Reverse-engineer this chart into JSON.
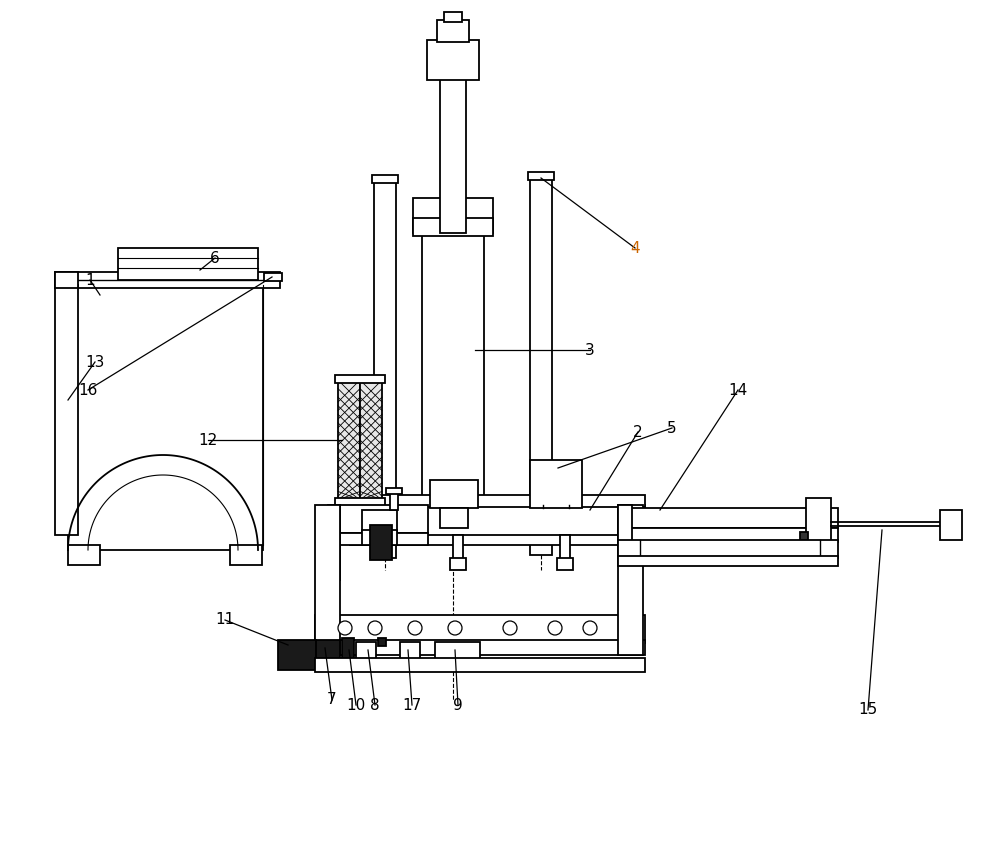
{
  "bg_color": "#ffffff",
  "lc": "#000000",
  "lw": 1.3,
  "figsize": [
    10.0,
    8.56
  ],
  "dpi": 100,
  "orange": "#cc6600"
}
